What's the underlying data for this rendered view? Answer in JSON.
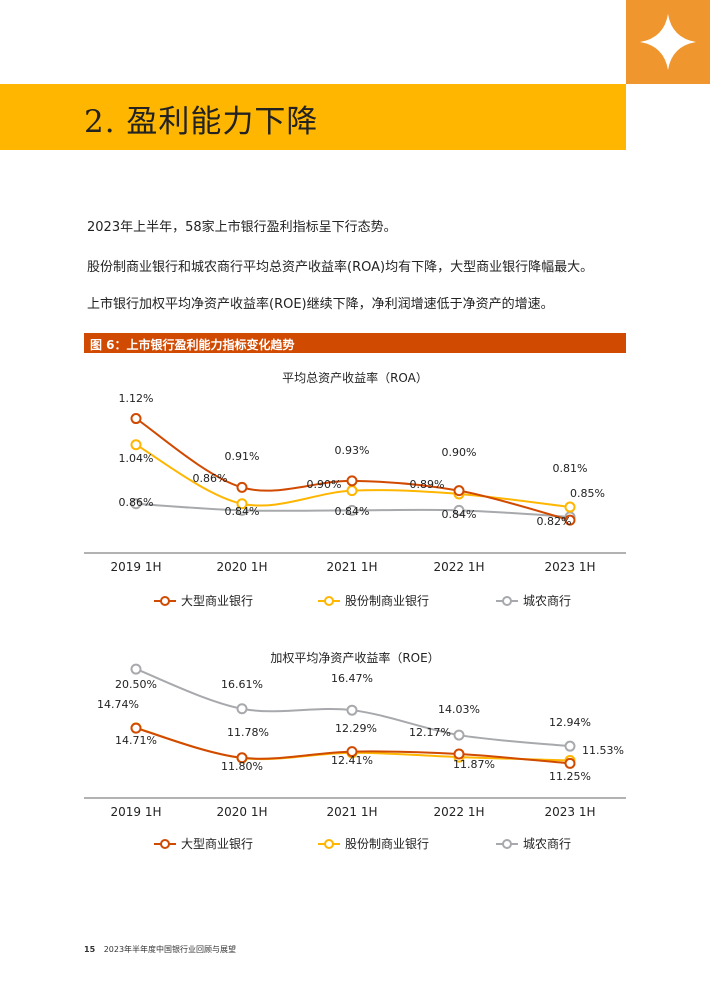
{
  "page": {
    "section_title": "2. 盈利能力下降",
    "paragraphs": [
      "2023年上半年，58家上市银行盈利指标呈下行态势。",
      "股份制商业银行和城农商行平均总资产收益率(ROA)均有下降，大型商业银行降幅最大。",
      "上市银行加权平均净资产收益率(ROE)继续下降，净利润增速低于净资产的增速。"
    ],
    "figure_title": "图 6：上市银行盈利能力指标变化趋势",
    "footer_page": "15",
    "footer_text": "2023年半年度中国银行业回顾与展望"
  },
  "colors": {
    "accent_orange": "#ffb600",
    "corner_orange": "#f0962e",
    "figure_band": "#d04a02",
    "series_large": "#d04a02",
    "series_joint": "#ffb600",
    "series_city": "#a7a9ac"
  },
  "chart_data": [
    {
      "type": "line",
      "title": "平均总资产收益率（ROA）",
      "categories": [
        "2019 1H",
        "2020 1H",
        "2021 1H",
        "2022 1H",
        "2023 1H"
      ],
      "unit": "%",
      "ylim": [
        0.78,
        1.14
      ],
      "series": [
        {
          "name": "大型商业银行",
          "values": [
            1.12,
            0.91,
            0.93,
            0.9,
            0.81
          ],
          "labels": [
            "1.12%",
            "0.91%",
            "0.93%",
            "0.90%",
            "0.81%"
          ]
        },
        {
          "name": "股份制商业银行",
          "values": [
            1.04,
            0.86,
            0.9,
            0.89,
            0.85
          ],
          "labels": [
            "1.04%",
            "0.86%",
            "0.90%",
            "0.89%",
            "0.85%"
          ]
        },
        {
          "name": "城农商行",
          "values": [
            0.86,
            0.84,
            0.84,
            0.84,
            0.82
          ],
          "labels": [
            "0.86%",
            "0.84%",
            "0.84%",
            "0.84%",
            "0.82%"
          ]
        }
      ],
      "legend": "bottom",
      "grid": false
    },
    {
      "type": "line",
      "title": "加权平均净资产收益率（ROE）",
      "categories": [
        "2019 1H",
        "2020 1H",
        "2021 1H",
        "2022 1H",
        "2023 1H"
      ],
      "unit": "%",
      "ylim": [
        10.8,
        21.0
      ],
      "series": [
        {
          "name": "大型商业银行",
          "values": [
            14.71,
            11.8,
            12.41,
            12.17,
            11.25
          ],
          "labels": [
            "14.71%",
            "11.80%",
            "12.41%",
            "12.17%",
            "11.25%"
          ]
        },
        {
          "name": "股份制商业银行",
          "values": [
            14.74,
            11.78,
            12.29,
            11.87,
            11.53
          ],
          "labels": [
            "14.74%",
            "11.78%",
            "12.29%",
            "11.87%",
            "11.53%"
          ]
        },
        {
          "name": "城农商行",
          "values": [
            20.5,
            16.61,
            16.47,
            14.03,
            12.94
          ],
          "labels": [
            "20.50%",
            "16.61%",
            "16.47%",
            "14.03%",
            "12.94%"
          ]
        }
      ],
      "legend": "bottom",
      "grid": false
    }
  ]
}
